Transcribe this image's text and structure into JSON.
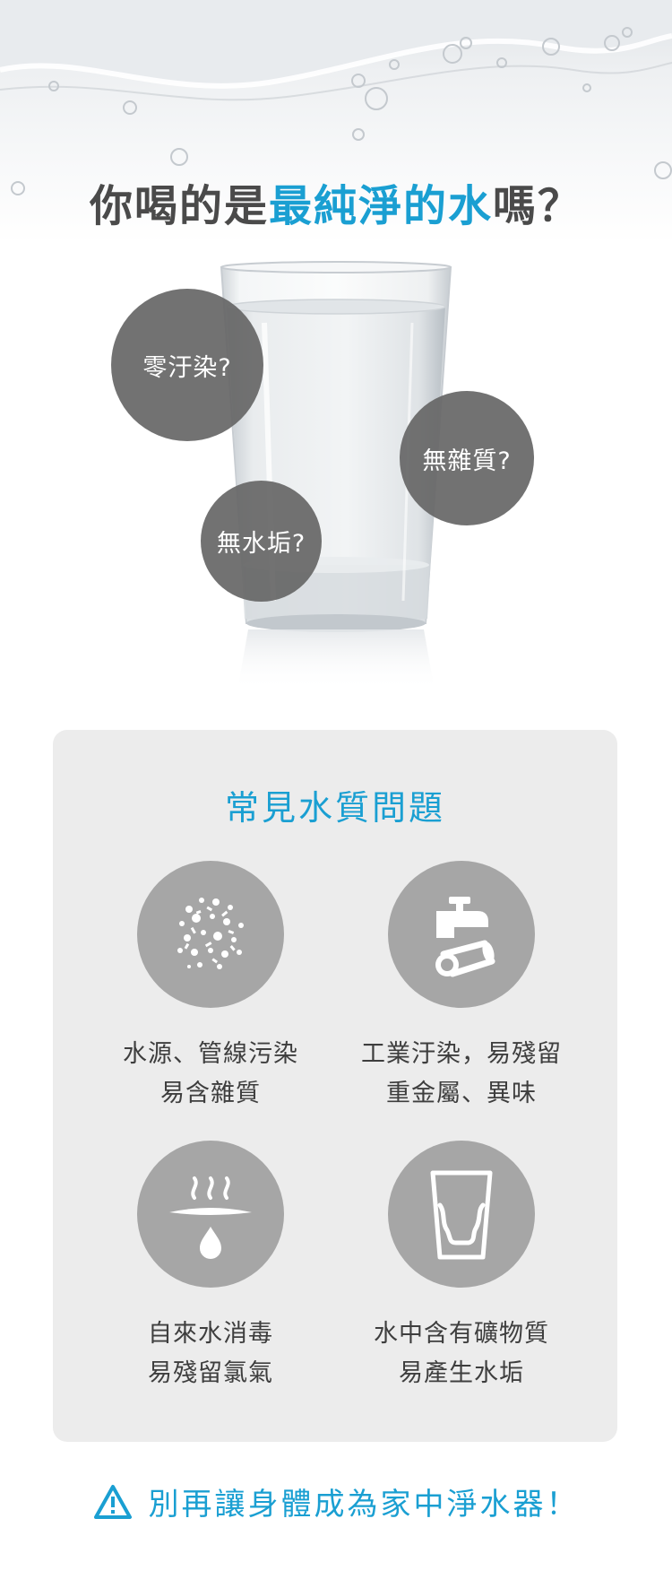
{
  "hero": {
    "headline_prefix": "你喝的是",
    "headline_highlight": "最純淨的水",
    "headline_suffix": "嗎？",
    "bubbles": [
      "零汙染?",
      "無雜質?",
      "無水垢?"
    ]
  },
  "panel": {
    "title": "常見水質問題",
    "issues": [
      {
        "icon": "particles-icon",
        "line1": "水源、管線污染",
        "line2": "易含雜質"
      },
      {
        "icon": "faucet-pipe-icon",
        "line1": "工業汙染，易殘留",
        "line2": "重金屬、異味"
      },
      {
        "icon": "steam-drop-icon",
        "line1": "自來水消毒",
        "line2": "易殘留氯氣"
      },
      {
        "icon": "scaled-glass-icon",
        "line1": "水中含有礦物質",
        "line2": "易產生水垢"
      }
    ]
  },
  "warning": {
    "icon": "warning-triangle-icon",
    "text": "別再讓身體成為家中淨水器！"
  },
  "colors": {
    "accent": "#1a9fd2",
    "bubble": "#666666",
    "panel_bg": "#ececec",
    "icon_circle": "#a6a6a6",
    "text_dark": "#3e3e3e"
  }
}
